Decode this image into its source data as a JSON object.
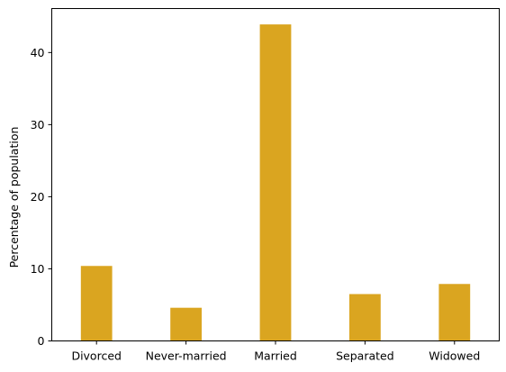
{
  "chart_data": {
    "type": "bar",
    "title": "",
    "xlabel": "",
    "ylabel": "Percentage of population",
    "categories": [
      "Divorced",
      "Never-married",
      "Married",
      "Separated",
      "Widowed"
    ],
    "values": [
      10.4,
      4.6,
      43.9,
      6.5,
      7.9
    ],
    "ylim": [
      0,
      46.1
    ],
    "yticks": [
      0,
      10,
      20,
      30,
      40
    ],
    "bar_color": "#DAA520",
    "grid": false,
    "legend": "none"
  }
}
